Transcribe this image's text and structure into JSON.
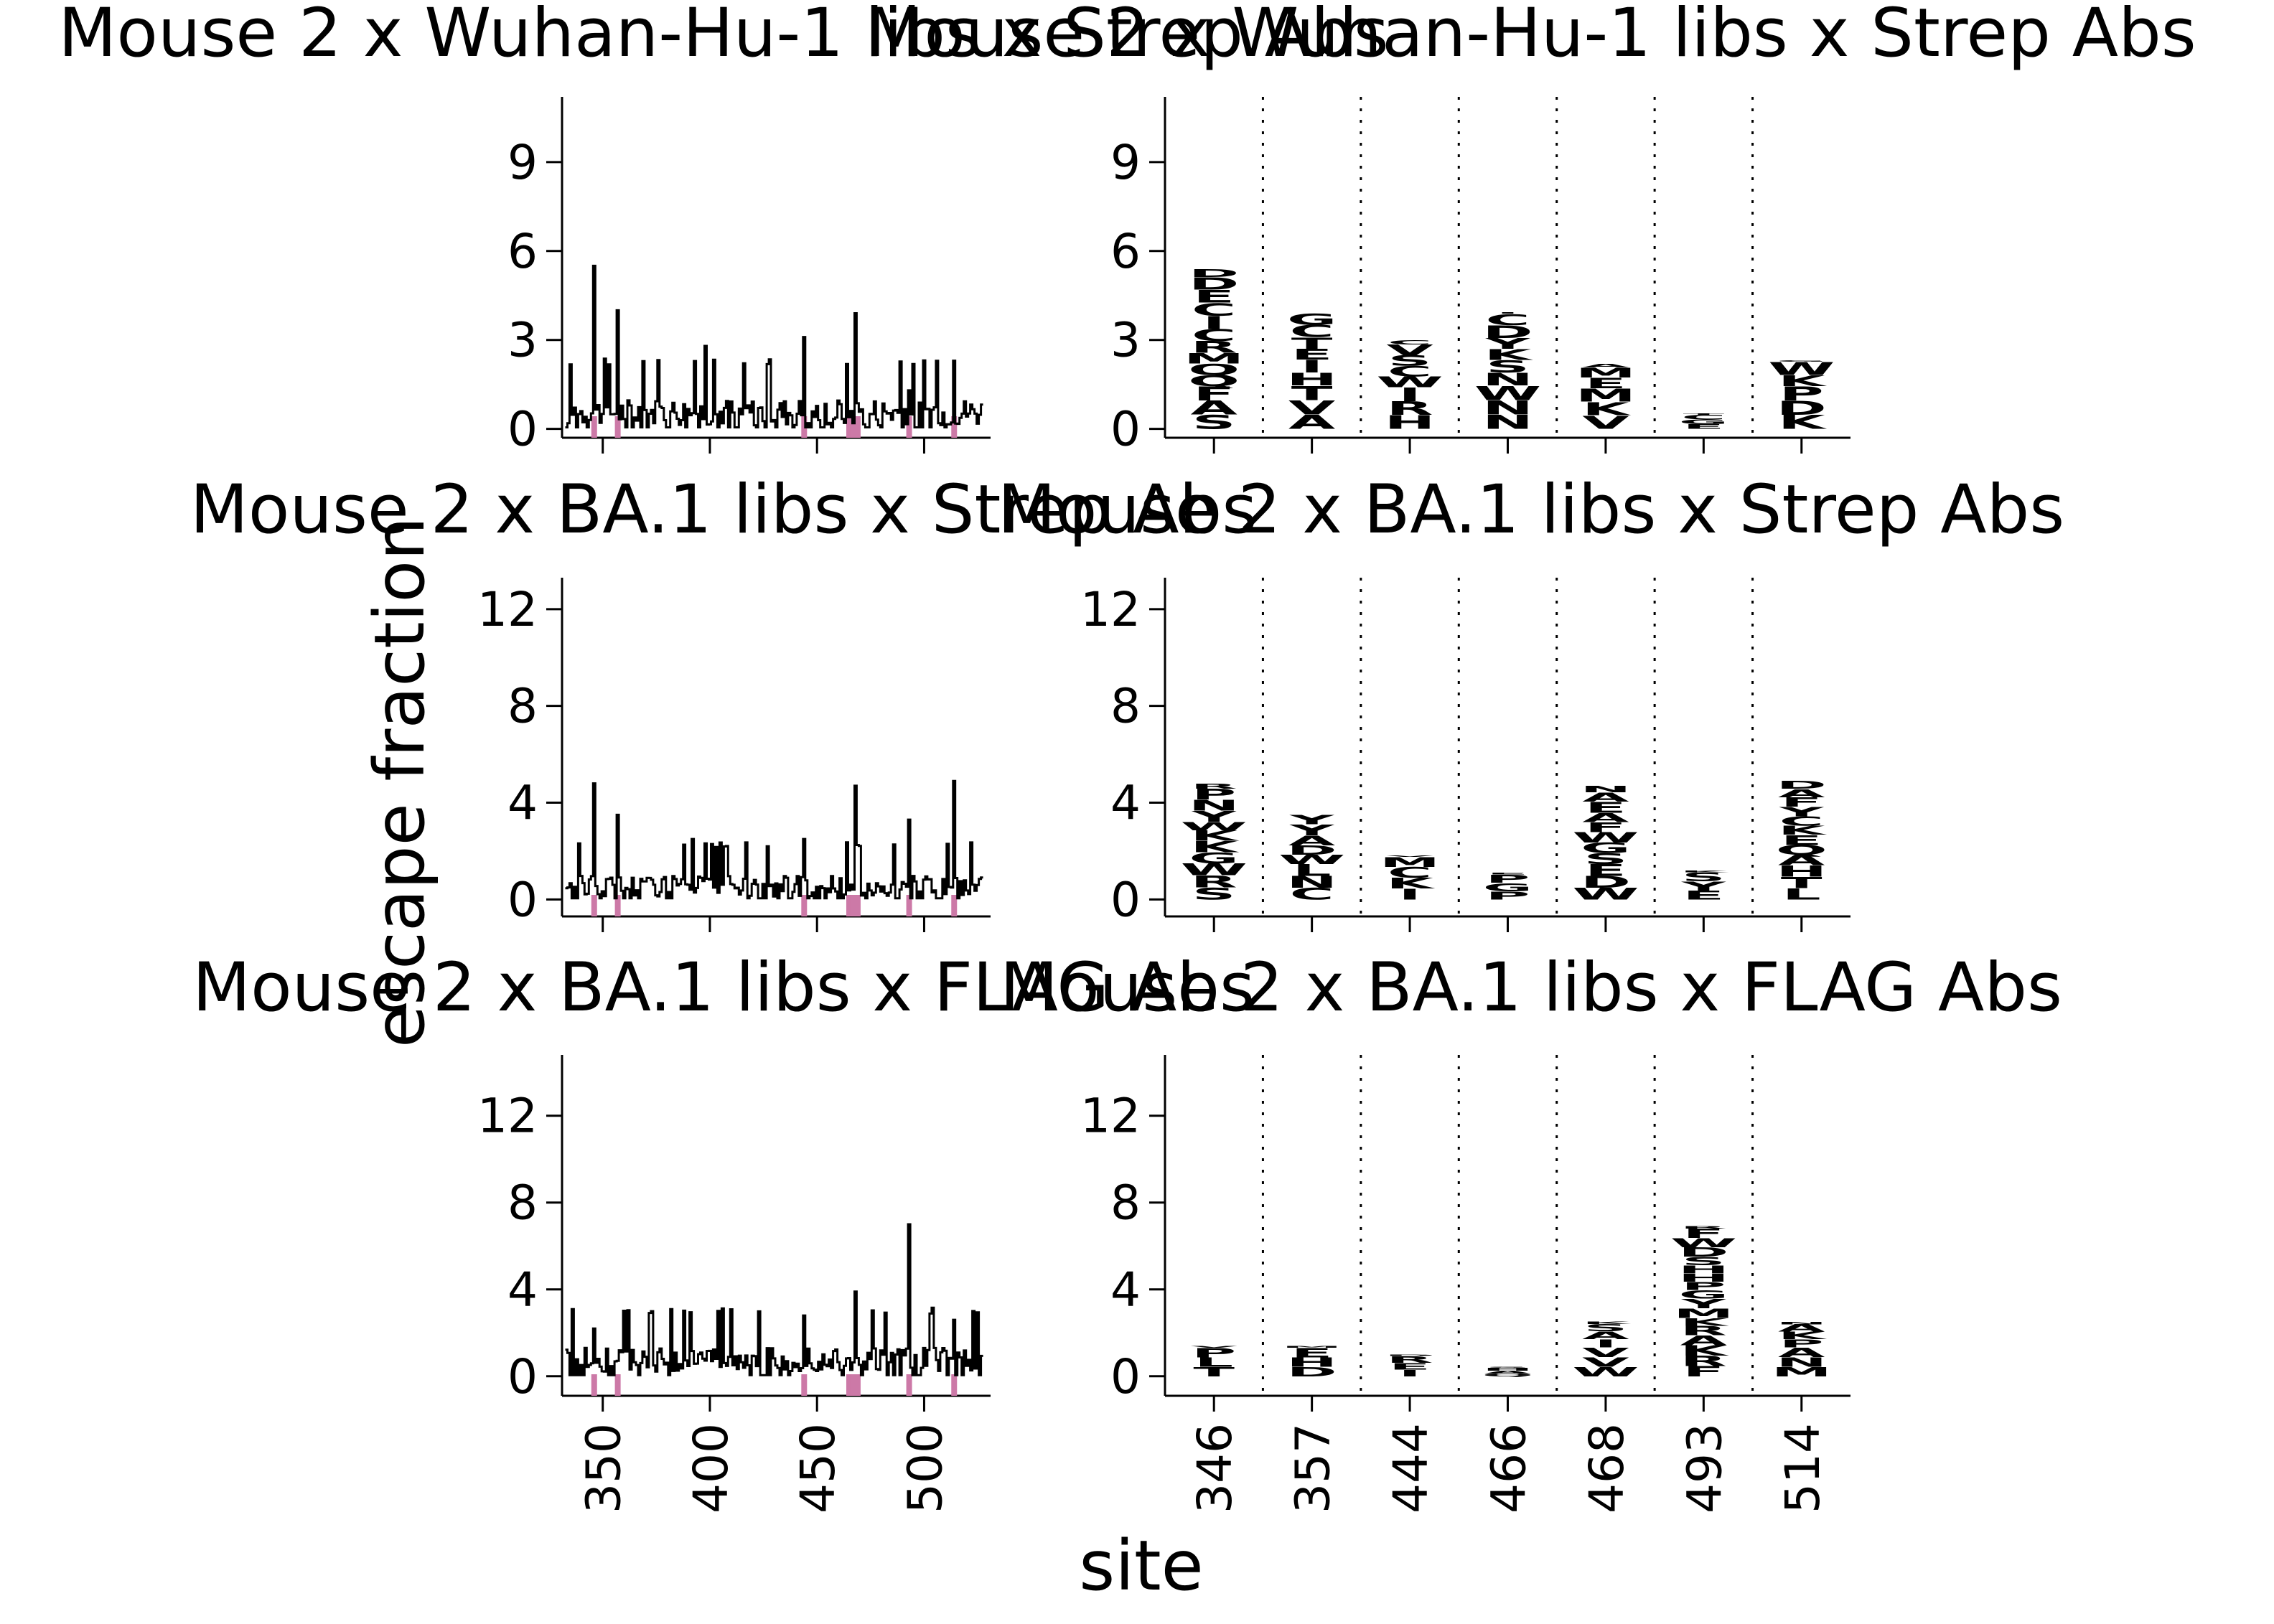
{
  "figure": {
    "ylabel": "escape fraction",
    "xlabel": "site"
  },
  "colors": {
    "line": "#000000",
    "site_marker": "#cc79a7",
    "logo_gray": "#9a9a9a",
    "logo_light": "#d4d4d4",
    "logo_purple": "#800080",
    "logo_purple_light": "#cc66cc"
  },
  "chart_data": [
    {
      "type": "line",
      "title": "Mouse 2 x Wuhan-Hu-1 libs x Strep Abs",
      "ylim": [
        -0.3,
        11.2
      ],
      "yticks": [
        "0",
        "3",
        "6",
        "9"
      ],
      "ytick_values": [
        0,
        3,
        6,
        9
      ],
      "xlim": [
        331,
        531
      ],
      "xticks": [
        "350",
        "400",
        "450",
        "500"
      ],
      "xtick_values": [
        350,
        400,
        450,
        500
      ],
      "show_xticklabels": false,
      "marked_sites": [
        346,
        357,
        444,
        466,
        468,
        493,
        514
      ],
      "peaks": [
        [
          346,
          5.5
        ],
        [
          357,
          4.0
        ],
        [
          398,
          2.8
        ],
        [
          444,
          3.1
        ],
        [
          468,
          3.9
        ],
        [
          493,
          1.3
        ],
        [
          514,
          2.3
        ]
      ],
      "base": 0.6
    },
    {
      "type": "logo",
      "title": "Mouse 2 x Wuhan-Hu-1 libs x Strep Abs",
      "ylim": [
        -0.3,
        11.2
      ],
      "yticks": [
        "0",
        "3",
        "6",
        "9"
      ],
      "ytick_values": [
        0,
        3,
        6,
        9
      ],
      "sites": [
        "346",
        "357",
        "444",
        "466",
        "468",
        "493",
        "514"
      ],
      "show_xticklabels": false,
      "stack_heights": [
        5.4,
        3.9,
        3.0,
        3.9,
        2.2,
        0.5,
        2.3
      ],
      "stack_colors": [
        "gray",
        "gray",
        "gray",
        "gray",
        "gray",
        "purple_light",
        "gray"
      ]
    },
    {
      "type": "line",
      "title": "Mouse 2 x BA.1 libs x Strep Abs",
      "ylim": [
        -0.7,
        13.3
      ],
      "yticks": [
        "0",
        "4",
        "8",
        "12"
      ],
      "ytick_values": [
        0,
        4,
        8,
        12
      ],
      "xlim": [
        331,
        531
      ],
      "xticks": [
        "350",
        "400",
        "450",
        "500"
      ],
      "xtick_values": [
        350,
        400,
        450,
        500
      ],
      "show_xticklabels": false,
      "marked_sites": [
        346,
        357,
        444,
        466,
        468,
        493,
        514
      ],
      "peaks": [
        [
          346,
          4.8
        ],
        [
          357,
          3.5
        ],
        [
          392,
          2.5
        ],
        [
          444,
          2.5
        ],
        [
          468,
          4.7
        ],
        [
          493,
          3.3
        ],
        [
          514,
          4.9
        ]
      ],
      "base": 0.6
    },
    {
      "type": "logo",
      "title": "Mouse 2 x BA.1 libs x Strep Abs",
      "ylim": [
        -0.7,
        13.3
      ],
      "yticks": [
        "0",
        "4",
        "8",
        "12"
      ],
      "ytick_values": [
        0,
        4,
        8,
        12
      ],
      "sites": [
        "346",
        "357",
        "444",
        "466",
        "468",
        "493",
        "514"
      ],
      "show_xticklabels": false,
      "stack_heights": [
        4.8,
        3.5,
        1.8,
        1.1,
        4.7,
        1.2,
        4.9
      ],
      "stack_colors": [
        "gray",
        "gray",
        "light",
        "gray",
        "gray",
        "purple_light",
        "gray"
      ]
    },
    {
      "type": "line",
      "title": "Mouse 2 x BA.1 libs x FLAG Abs",
      "ylim": [
        -0.9,
        14.8
      ],
      "yticks": [
        "0",
        "4",
        "8",
        "12"
      ],
      "ytick_values": [
        0,
        4,
        8,
        12
      ],
      "xlim": [
        331,
        531
      ],
      "xticks": [
        "350",
        "400",
        "450",
        "500"
      ],
      "xtick_values": [
        350,
        400,
        450,
        500
      ],
      "show_xticklabels": true,
      "marked_sites": [
        346,
        357,
        444,
        466,
        468,
        493,
        514
      ],
      "peaks": [
        [
          346,
          2.2
        ],
        [
          444,
          2.8
        ],
        [
          468,
          3.9
        ],
        [
          493,
          7.0
        ],
        [
          514,
          2.6
        ]
      ],
      "base": 0.8
    },
    {
      "type": "logo",
      "title": "Mouse 2 x BA.1 libs x FLAG Abs",
      "ylim": [
        -0.9,
        14.8
      ],
      "yticks": [
        "0",
        "4",
        "8",
        "12"
      ],
      "ytick_values": [
        0,
        4,
        8,
        12
      ],
      "sites": [
        "346",
        "357",
        "444",
        "466",
        "468",
        "493",
        "514"
      ],
      "show_xticklabels": true,
      "stack_heights": [
        1.4,
        1.4,
        1.0,
        0.4,
        2.5,
        6.9,
        2.5
      ],
      "stack_colors": [
        "light",
        "light",
        "light",
        "light",
        "light",
        "purple",
        "light"
      ]
    }
  ]
}
